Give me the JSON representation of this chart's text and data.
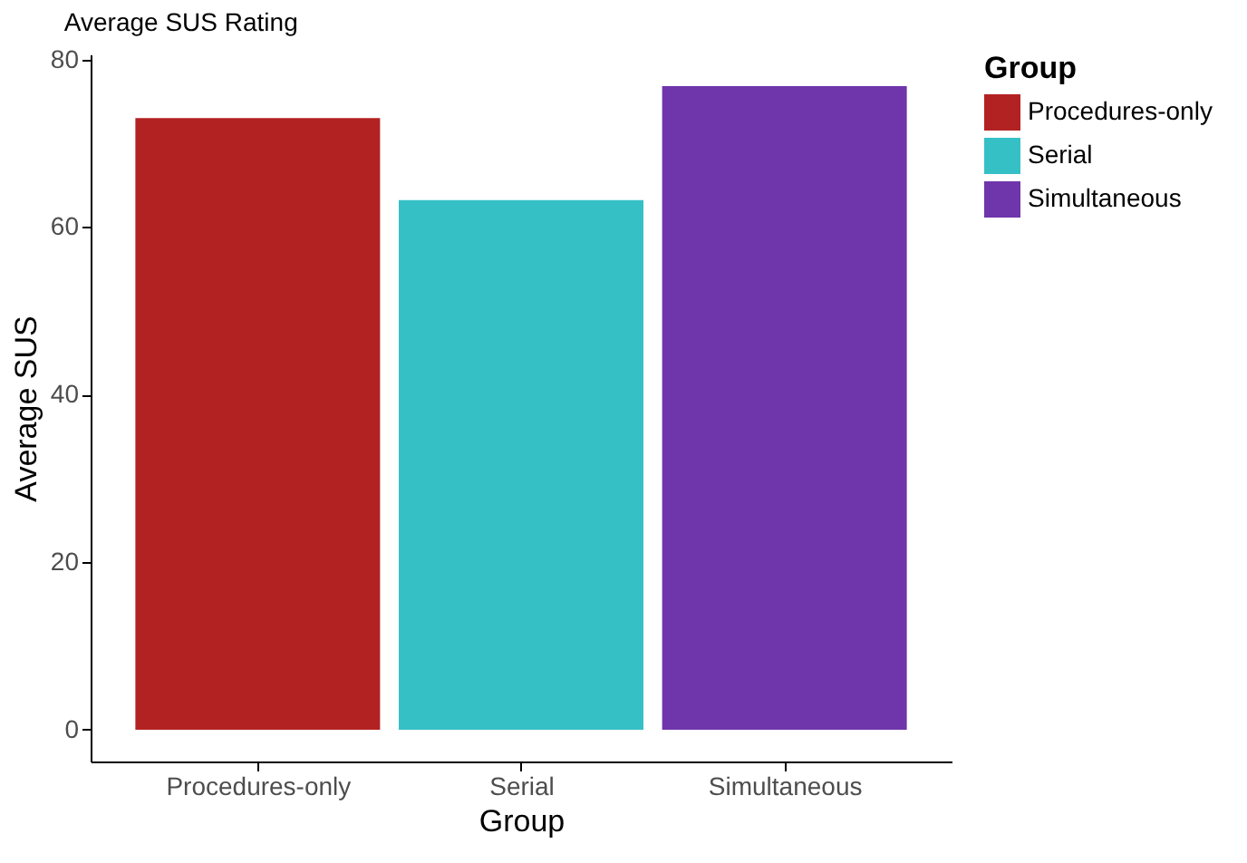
{
  "chart_data": {
    "type": "bar",
    "title": "Average SUS Rating",
    "xlabel": "Group",
    "ylabel": "Average SUS",
    "legend_title": "Group",
    "categories": [
      "Procedures-only",
      "Serial",
      "Simultaneous"
    ],
    "series": [
      {
        "name": "Procedures-only",
        "color": "#b22222",
        "values": [
          73.0,
          null,
          null
        ]
      },
      {
        "name": "Serial",
        "color": "#35c0c6",
        "values": [
          null,
          63.2,
          null
        ]
      },
      {
        "name": "Simultaneous",
        "color": "#6f35ab",
        "values": [
          null,
          null,
          76.8
        ]
      }
    ],
    "ylim": [
      -3.8,
      80.6
    ],
    "yticks": [
      0,
      20,
      40,
      60,
      80
    ],
    "grid": false,
    "legend": "right"
  }
}
